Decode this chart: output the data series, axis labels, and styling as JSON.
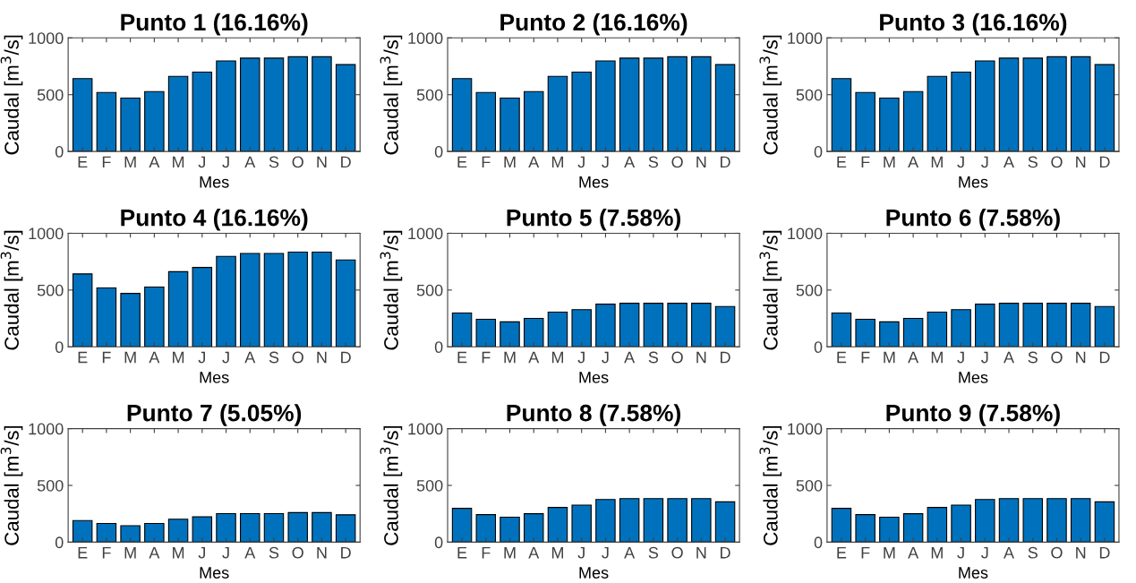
{
  "chart_data": [
    {
      "type": "bar",
      "title": "Punto 1 (16.16%)",
      "xlabel": "Mes",
      "ylabel": "Caudal [m$^{3}$/s]",
      "categories": [
        "E",
        "F",
        "M",
        "A",
        "M",
        "J",
        "J",
        "A",
        "S",
        "O",
        "N",
        "D"
      ],
      "values": [
        642,
        519,
        470,
        527,
        662,
        699,
        797,
        822,
        822,
        834,
        834,
        765
      ],
      "color": "#0072bd",
      "ylim": [
        0,
        1000
      ],
      "yticks": [
        0,
        500,
        1000
      ],
      "grid": false,
      "legend": false
    },
    {
      "type": "bar",
      "title": "Punto 2 (16.16%)",
      "xlabel": "Mes",
      "ylabel": "Caudal [m$^{3}$/s]",
      "categories": [
        "E",
        "F",
        "M",
        "A",
        "M",
        "J",
        "J",
        "A",
        "S",
        "O",
        "N",
        "D"
      ],
      "values": [
        642,
        519,
        470,
        527,
        662,
        699,
        797,
        822,
        822,
        834,
        834,
        765
      ],
      "color": "#0072bd",
      "ylim": [
        0,
        1000
      ],
      "yticks": [
        0,
        500,
        1000
      ],
      "grid": false,
      "legend": false
    },
    {
      "type": "bar",
      "title": "Punto 3 (16.16%)",
      "xlabel": "Mes",
      "ylabel": "Caudal [m$^{3}$/s]",
      "categories": [
        "E",
        "F",
        "M",
        "A",
        "M",
        "J",
        "J",
        "A",
        "S",
        "O",
        "N",
        "D"
      ],
      "values": [
        642,
        519,
        470,
        527,
        662,
        699,
        797,
        822,
        822,
        834,
        834,
        765
      ],
      "color": "#0072bd",
      "ylim": [
        0,
        1000
      ],
      "yticks": [
        0,
        500,
        1000
      ],
      "grid": false,
      "legend": false
    },
    {
      "type": "bar",
      "title": "Punto 4 (16.16%)",
      "xlabel": "Mes",
      "ylabel": "Caudal [m$^{3}$/s]",
      "categories": [
        "E",
        "F",
        "M",
        "A",
        "M",
        "J",
        "J",
        "A",
        "S",
        "O",
        "N",
        "D"
      ],
      "values": [
        642,
        519,
        470,
        527,
        662,
        699,
        797,
        822,
        822,
        834,
        834,
        765
      ],
      "color": "#0072bd",
      "ylim": [
        0,
        1000
      ],
      "yticks": [
        0,
        500,
        1000
      ],
      "grid": false,
      "legend": false
    },
    {
      "type": "bar",
      "title": "Punto 5 (7.58%)",
      "xlabel": "Mes",
      "ylabel": "Caudal [m$^{3}$/s]",
      "categories": [
        "E",
        "F",
        "M",
        "A",
        "M",
        "J",
        "J",
        "A",
        "S",
        "O",
        "N",
        "D"
      ],
      "values": [
        298,
        243,
        220,
        251,
        306,
        327,
        376,
        384,
        384,
        384,
        384,
        355
      ],
      "color": "#0072bd",
      "ylim": [
        0,
        1000
      ],
      "yticks": [
        0,
        500,
        1000
      ],
      "grid": false,
      "legend": false
    },
    {
      "type": "bar",
      "title": "Punto 6 (7.58%)",
      "xlabel": "Mes",
      "ylabel": "Caudal [m$^{3}$/s]",
      "categories": [
        "E",
        "F",
        "M",
        "A",
        "M",
        "J",
        "J",
        "A",
        "S",
        "O",
        "N",
        "D"
      ],
      "values": [
        298,
        243,
        220,
        251,
        306,
        327,
        376,
        384,
        384,
        384,
        384,
        355
      ],
      "color": "#0072bd",
      "ylim": [
        0,
        1000
      ],
      "yticks": [
        0,
        500,
        1000
      ],
      "grid": false,
      "legend": false
    },
    {
      "type": "bar",
      "title": "Punto 7 (5.05%)",
      "xlabel": "Mes",
      "ylabel": "Caudal [m$^{3}$/s]",
      "categories": [
        "E",
        "F",
        "M",
        "A",
        "M",
        "J",
        "J",
        "A",
        "S",
        "O",
        "N",
        "D"
      ],
      "values": [
        191,
        165,
        145,
        165,
        203,
        223,
        252,
        252,
        252,
        261,
        261,
        241
      ],
      "color": "#0072bd",
      "ylim": [
        0,
        1000
      ],
      "yticks": [
        0,
        500,
        1000
      ],
      "grid": false,
      "legend": false
    },
    {
      "type": "bar",
      "title": "Punto 8 (7.58%)",
      "xlabel": "Mes",
      "ylabel": "Caudal [m$^{3}$/s]",
      "categories": [
        "E",
        "F",
        "M",
        "A",
        "M",
        "J",
        "J",
        "A",
        "S",
        "O",
        "N",
        "D"
      ],
      "values": [
        298,
        243,
        220,
        251,
        306,
        327,
        376,
        384,
        384,
        384,
        384,
        355
      ],
      "color": "#0072bd",
      "ylim": [
        0,
        1000
      ],
      "yticks": [
        0,
        500,
        1000
      ],
      "grid": false,
      "legend": false
    },
    {
      "type": "bar",
      "title": "Punto 9 (7.58%)",
      "xlabel": "Mes",
      "ylabel": "Caudal [m$^{3}$/s]",
      "categories": [
        "E",
        "F",
        "M",
        "A",
        "M",
        "J",
        "J",
        "A",
        "S",
        "O",
        "N",
        "D"
      ],
      "values": [
        298,
        243,
        220,
        251,
        306,
        327,
        376,
        384,
        384,
        384,
        384,
        355
      ],
      "color": "#0072bd",
      "ylim": [
        0,
        1000
      ],
      "yticks": [
        0,
        500,
        1000
      ],
      "grid": false,
      "legend": false
    }
  ]
}
